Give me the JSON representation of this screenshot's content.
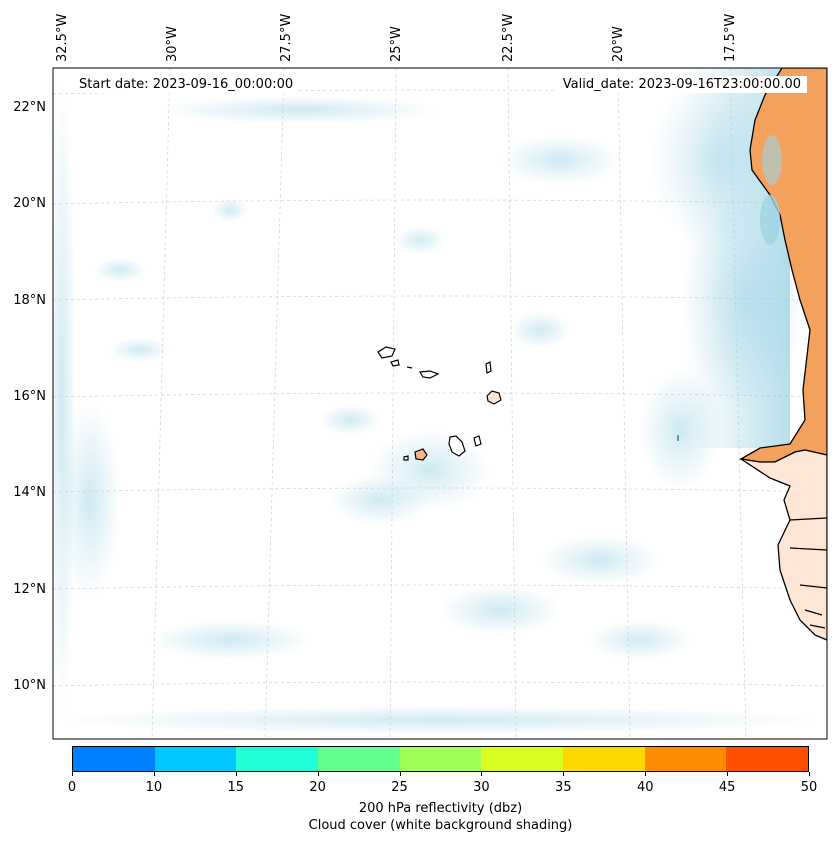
{
  "map": {
    "lon_labels": [
      "32.5°W",
      "30°W",
      "27.5°W",
      "25°W",
      "22.5°W",
      "20°W",
      "17.5°W"
    ],
    "lat_labels": [
      "22°N",
      "20°N",
      "18°N",
      "16°N",
      "14°N",
      "12°N",
      "10°N"
    ],
    "start_date": "Start date: 2023-09-16_00:00:00",
    "valid_date": "Valid_date: 2023-09-16T23:00:00.00",
    "land_fill_color": "#f4a15d",
    "cloud_color": "#a8d8e8",
    "coastline_color": "#000000"
  },
  "colorbar": {
    "colors": [
      "#0080ff",
      "#00c8ff",
      "#20ffd8",
      "#60ff90",
      "#a0ff50",
      "#d8ff20",
      "#ffd800",
      "#ff8c00",
      "#ff5000"
    ],
    "tick_labels": [
      "0",
      "10",
      "15",
      "20",
      "25",
      "30",
      "35",
      "40",
      "45",
      "50"
    ],
    "caption_1": "200 hPa reflectivity (dbz)",
    "caption_2": "Cloud cover (white background shading)"
  }
}
